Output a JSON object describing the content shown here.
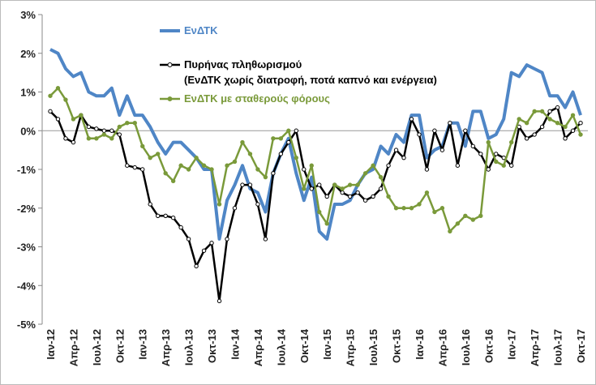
{
  "chart_data": {
    "type": "line",
    "categories": [
      "Ιαν-12",
      null,
      null,
      "Απρ-12",
      null,
      null,
      "Ιουλ-12",
      null,
      null,
      "Οκτ-12",
      null,
      null,
      "Ιαν-13",
      null,
      null,
      "Απρ-13",
      null,
      null,
      "Ιουλ-13",
      null,
      null,
      "Οκτ-13",
      null,
      null,
      "Ιαν-14",
      null,
      null,
      "Απρ-14",
      null,
      null,
      "Ιουλ-14",
      null,
      null,
      "Οκτ-14",
      null,
      null,
      "Ιαν-15",
      null,
      null,
      "Απρ-15",
      null,
      null,
      "Ιουλ-15",
      null,
      null,
      "Οκτ-15",
      null,
      null,
      "Ιαν-16",
      null,
      null,
      "Απρ-16",
      null,
      null,
      "Ιουλ-16",
      null,
      null,
      "Οκτ-16",
      null,
      null,
      "Ιαν-17",
      null,
      null,
      "Απρ-17",
      null,
      null,
      "Ιουλ-17",
      null,
      null,
      "Οκτ-17"
    ],
    "series": [
      {
        "name": "ΕνΔΤΚ",
        "color": "#4f86c6",
        "markers": false,
        "values": [
          2.1,
          2.0,
          1.6,
          1.4,
          1.5,
          1.0,
          0.9,
          0.9,
          1.1,
          0.4,
          0.9,
          0.4,
          0.4,
          0.1,
          -0.3,
          -0.6,
          -0.3,
          -0.3,
          -0.5,
          -0.7,
          -1.0,
          -1.0,
          -2.8,
          -1.8,
          -1.4,
          -0.9,
          -1.5,
          -1.6,
          -2.1,
          -1.1,
          -0.6,
          -0.2,
          -1.1,
          -1.8,
          -1.2,
          -2.6,
          -2.8,
          -1.9,
          -1.9,
          -1.8,
          -1.4,
          -1.1,
          -1.0,
          -0.4,
          -0.6,
          -0.1,
          -0.3,
          0.4,
          0.4,
          -0.7,
          -0.5,
          -0.4,
          0.2,
          0.2,
          -0.4,
          0.5,
          0.5,
          -0.2,
          -0.1,
          0.3,
          1.5,
          1.4,
          1.7,
          1.6,
          1.5,
          0.9,
          0.9,
          0.6,
          1.0,
          0.4
        ]
      },
      {
        "name": "Πυρήνας πληθωρισμού\n(ΕνΔΤΚ χωρίς διατροφή, ποτά καπνό και ενέργεια)",
        "color": "#000000",
        "markers": true,
        "values": [
          0.5,
          0.3,
          -0.2,
          -0.3,
          0.4,
          0.1,
          0.05,
          0.0,
          0.0,
          -0.1,
          -0.9,
          -0.95,
          -1.0,
          -1.9,
          -2.2,
          -2.2,
          -2.25,
          -2.5,
          -2.8,
          -3.5,
          -3.1,
          -2.9,
          -4.4,
          -2.8,
          -2.0,
          -1.4,
          -1.4,
          -1.9,
          -2.8,
          -1.1,
          -0.6,
          -0.3,
          0.0,
          -1.0,
          -1.5,
          -1.4,
          -1.7,
          -1.4,
          -1.6,
          -1.7,
          -1.6,
          -1.8,
          -1.7,
          -1.5,
          -0.9,
          -0.5,
          -0.7,
          0.3,
          -0.1,
          -1.0,
          0.0,
          -0.5,
          0.2,
          -0.9,
          0.0,
          -0.4,
          -0.6,
          -1.0,
          -0.6,
          -0.7,
          -0.9,
          0.1,
          -0.2,
          -0.1,
          0.1,
          0.5,
          0.6,
          -0.2,
          0.0,
          0.2
        ]
      },
      {
        "name": "ΕνΔΤΚ με σταθερούς φόρους",
        "color": "#7a9a3a",
        "markers": true,
        "values": [
          0.9,
          1.1,
          0.8,
          0.3,
          0.4,
          -0.2,
          -0.2,
          -0.1,
          -0.2,
          0.1,
          0.2,
          0.2,
          -0.4,
          -0.7,
          -0.6,
          -1.1,
          -1.3,
          -0.9,
          -1.0,
          -0.7,
          -0.9,
          -1.0,
          -1.9,
          -0.9,
          -0.8,
          -0.3,
          -0.6,
          -1.0,
          -1.2,
          -0.2,
          -0.2,
          0.0,
          -0.7,
          -1.5,
          -0.9,
          -2.1,
          -2.4,
          -1.4,
          -1.5,
          -1.4,
          -1.4,
          -1.1,
          -0.9,
          -1.2,
          -1.7,
          -2.0,
          -2.0,
          -2.0,
          -1.9,
          -1.6,
          -2.1,
          -2.0,
          -2.6,
          -2.4,
          -2.2,
          -2.3,
          -2.2,
          -0.3,
          -0.8,
          -0.9,
          -0.3,
          0.3,
          0.2,
          0.5,
          0.5,
          0.3,
          0.2,
          0.1,
          0.4,
          -0.1
        ]
      }
    ],
    "ylim": [
      -5,
      3
    ],
    "yticks": [
      {
        "value": -5,
        "label": "-5%"
      },
      {
        "value": -4,
        "label": "-4%"
      },
      {
        "value": -3,
        "label": "-3%"
      },
      {
        "value": -2,
        "label": "-2%"
      },
      {
        "value": -1,
        "label": "-1%"
      },
      {
        "value": 0,
        "label": "0%"
      },
      {
        "value": 1,
        "label": "1%"
      },
      {
        "value": 2,
        "label": "2%"
      },
      {
        "value": 3,
        "label": "3%"
      }
    ]
  }
}
